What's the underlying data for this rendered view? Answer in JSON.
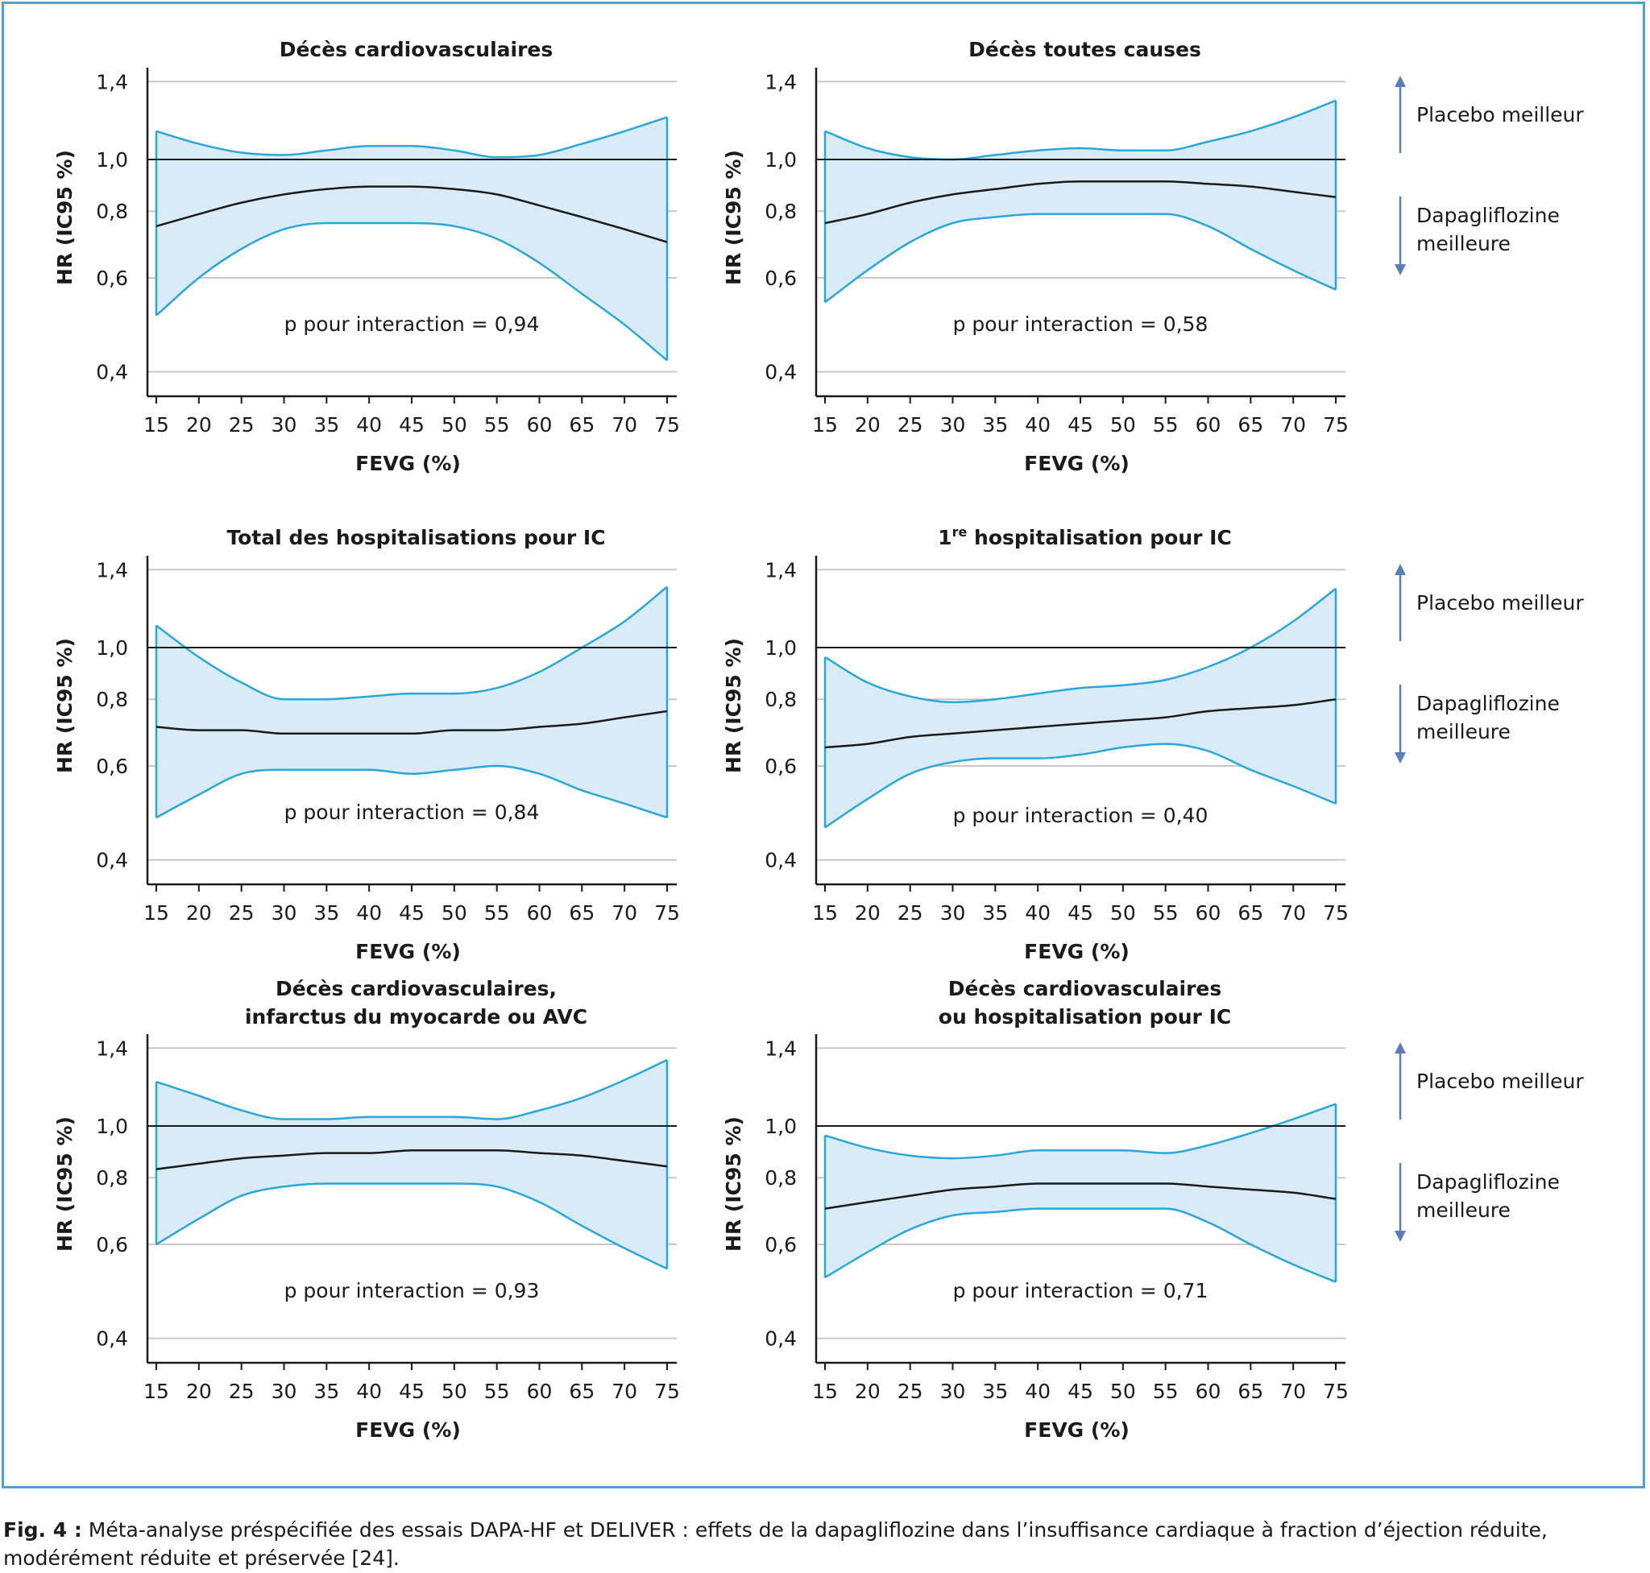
{
  "figure": {
    "caption_label": "Fig. 4 :",
    "caption_text": "Méta-analyse préspécifiée des essais DAPA-HF et DELIVER : effets de la dapagliflozine dans l’insuffisance cardiaque à fraction d’éjection réduite, modérément réduite et préservée [24].",
    "annotation_up": "Placebo meilleur",
    "annotation_down_line1": "Dapagliflozine",
    "annotation_down_line2": "meilleure"
  },
  "colors": {
    "band_fill": "#d9ebf7",
    "band_edge": "#29a7dc",
    "estimate": "#1a1a1a",
    "reference": "#1a1a1a",
    "grid": "#c8c8c8",
    "arrow": "#5b7db5",
    "frame": "#4aa3d6"
  },
  "chart_data": [
    {
      "type": "area",
      "title_lines": [
        "Décès cardiovasculaires"
      ],
      "title_sup": "",
      "xlabel": "FEVG (%)",
      "ylabel": "HR (IC95 %)",
      "xlim": [
        14,
        77
      ],
      "ylim": [
        0.37,
        1.55
      ],
      "yscale": "log",
      "xticks": [
        15,
        20,
        25,
        30,
        35,
        40,
        45,
        50,
        55,
        60,
        65,
        70,
        75
      ],
      "yticks": [
        0.4,
        0.6,
        0.8,
        1.0,
        1.4
      ],
      "ytick_labels": [
        "0,4",
        "0,6",
        "0,8",
        "1,0",
        "1,4"
      ],
      "reference_line": 1.0,
      "annotation": "p  pour interaction = 0,94",
      "x": [
        15,
        20,
        25,
        30,
        35,
        40,
        45,
        50,
        55,
        60,
        65,
        70,
        75
      ],
      "hr": [
        0.75,
        0.79,
        0.83,
        0.86,
        0.88,
        0.89,
        0.89,
        0.88,
        0.86,
        0.82,
        0.78,
        0.74,
        0.7
      ],
      "lower": [
        0.51,
        0.6,
        0.68,
        0.74,
        0.76,
        0.76,
        0.76,
        0.75,
        0.71,
        0.64,
        0.56,
        0.49,
        0.42
      ],
      "upper": [
        1.13,
        1.07,
        1.03,
        1.02,
        1.04,
        1.06,
        1.06,
        1.04,
        1.01,
        1.02,
        1.07,
        1.13,
        1.2
      ]
    },
    {
      "type": "area",
      "title_lines": [
        "Décès toutes causes"
      ],
      "title_sup": "",
      "xlabel": "FEVG (%)",
      "ylabel": "HR (IC95 %)",
      "xlim": [
        14,
        77
      ],
      "ylim": [
        0.37,
        1.55
      ],
      "yscale": "log",
      "xticks": [
        15,
        20,
        25,
        30,
        35,
        40,
        45,
        50,
        55,
        60,
        65,
        70,
        75
      ],
      "yticks": [
        0.4,
        0.6,
        0.8,
        1.0,
        1.4
      ],
      "ytick_labels": [
        "0,4",
        "0,6",
        "0,8",
        "1,0",
        "1,4"
      ],
      "reference_line": 1.0,
      "annotation": "p  pour interaction = 0,58",
      "x": [
        15,
        20,
        25,
        30,
        35,
        40,
        45,
        50,
        55,
        60,
        65,
        70,
        75
      ],
      "hr": [
        0.76,
        0.79,
        0.83,
        0.86,
        0.88,
        0.9,
        0.91,
        0.91,
        0.91,
        0.9,
        0.89,
        0.87,
        0.85
      ],
      "lower": [
        0.54,
        0.62,
        0.7,
        0.76,
        0.78,
        0.79,
        0.79,
        0.79,
        0.79,
        0.75,
        0.68,
        0.62,
        0.57
      ],
      "upper": [
        1.13,
        1.05,
        1.01,
        1.0,
        1.02,
        1.04,
        1.05,
        1.04,
        1.04,
        1.08,
        1.13,
        1.2,
        1.29
      ]
    },
    {
      "type": "area",
      "title_lines": [
        "Total des hospitalisations pour IC"
      ],
      "title_sup": "",
      "xlabel": "FEVG (%)",
      "ylabel": "HR (IC95 %)",
      "xlim": [
        14,
        77
      ],
      "ylim": [
        0.37,
        1.55
      ],
      "yscale": "log",
      "xticks": [
        15,
        20,
        25,
        30,
        35,
        40,
        45,
        50,
        55,
        60,
        65,
        70,
        75
      ],
      "yticks": [
        0.4,
        0.6,
        0.8,
        1.0,
        1.4
      ],
      "ytick_labels": [
        "0,4",
        "0,6",
        "0,8",
        "1,0",
        "1,4"
      ],
      "reference_line": 1.0,
      "annotation": "p  pour interaction = 0,84",
      "x": [
        15,
        20,
        25,
        30,
        35,
        40,
        45,
        50,
        55,
        60,
        65,
        70,
        75
      ],
      "hr": [
        0.71,
        0.7,
        0.7,
        0.69,
        0.69,
        0.69,
        0.69,
        0.7,
        0.7,
        0.71,
        0.72,
        0.74,
        0.76
      ],
      "lower": [
        0.48,
        0.53,
        0.58,
        0.59,
        0.59,
        0.59,
        0.58,
        0.59,
        0.6,
        0.58,
        0.54,
        0.51,
        0.48
      ],
      "upper": [
        1.1,
        0.96,
        0.86,
        0.8,
        0.8,
        0.81,
        0.82,
        0.82,
        0.84,
        0.9,
        1.0,
        1.12,
        1.3
      ]
    },
    {
      "type": "area",
      "title_lines": [
        "hospitalisation pour IC"
      ],
      "title_prefix": "1",
      "title_sup": "re",
      "xlabel": "FEVG (%)",
      "ylabel": "HR (IC95 %)",
      "xlim": [
        14,
        77
      ],
      "ylim": [
        0.37,
        1.55
      ],
      "yscale": "log",
      "xticks": [
        15,
        20,
        25,
        30,
        35,
        40,
        45,
        50,
        55,
        60,
        65,
        70,
        75
      ],
      "yticks": [
        0.4,
        0.6,
        0.8,
        1.0,
        1.4
      ],
      "ytick_labels": [
        "0,4",
        "0,6",
        "0,8",
        "1,0",
        "1,4"
      ],
      "reference_line": 1.0,
      "annotation": "p  pour interaction = 0,40",
      "x": [
        15,
        20,
        25,
        30,
        35,
        40,
        45,
        50,
        55,
        60,
        65,
        70,
        75
      ],
      "hr": [
        0.65,
        0.66,
        0.68,
        0.69,
        0.7,
        0.71,
        0.72,
        0.73,
        0.74,
        0.76,
        0.77,
        0.78,
        0.8
      ],
      "lower": [
        0.46,
        0.52,
        0.58,
        0.61,
        0.62,
        0.62,
        0.63,
        0.65,
        0.66,
        0.64,
        0.59,
        0.55,
        0.51
      ],
      "upper": [
        0.96,
        0.86,
        0.81,
        0.79,
        0.8,
        0.82,
        0.84,
        0.85,
        0.87,
        0.92,
        1.0,
        1.12,
        1.29
      ]
    },
    {
      "type": "area",
      "title_lines": [
        "Décès cardiovasculaires,",
        "infarctus du myocarde ou AVC"
      ],
      "title_sup": "",
      "xlabel": "FEVG (%)",
      "ylabel": "HR (IC95 %)",
      "xlim": [
        14,
        77
      ],
      "ylim": [
        0.37,
        1.55
      ],
      "yscale": "log",
      "xticks": [
        15,
        20,
        25,
        30,
        35,
        40,
        45,
        50,
        55,
        60,
        65,
        70,
        75
      ],
      "yticks": [
        0.4,
        0.6,
        0.8,
        1.0,
        1.4
      ],
      "ytick_labels": [
        "0,4",
        "0,6",
        "0,8",
        "1,0",
        "1,4"
      ],
      "reference_line": 1.0,
      "annotation": "p  pour interaction = 0,93",
      "x": [
        15,
        20,
        25,
        30,
        35,
        40,
        45,
        50,
        55,
        60,
        65,
        70,
        75
      ],
      "hr": [
        0.83,
        0.85,
        0.87,
        0.88,
        0.89,
        0.89,
        0.9,
        0.9,
        0.9,
        0.89,
        0.88,
        0.86,
        0.84
      ],
      "lower": [
        0.6,
        0.67,
        0.74,
        0.77,
        0.78,
        0.78,
        0.78,
        0.78,
        0.77,
        0.72,
        0.65,
        0.59,
        0.54
      ],
      "upper": [
        1.21,
        1.14,
        1.07,
        1.03,
        1.03,
        1.04,
        1.04,
        1.04,
        1.03,
        1.07,
        1.13,
        1.22,
        1.33
      ]
    },
    {
      "type": "area",
      "title_lines": [
        "Décès cardiovasculaires",
        "ou hospitalisation pour IC"
      ],
      "title_sup": "",
      "xlabel": "FEVG (%)",
      "ylabel": "HR (IC95 %)",
      "xlim": [
        14,
        77
      ],
      "ylim": [
        0.37,
        1.55
      ],
      "yscale": "log",
      "xticks": [
        15,
        20,
        25,
        30,
        35,
        40,
        45,
        50,
        55,
        60,
        65,
        70,
        75
      ],
      "yticks": [
        0.4,
        0.6,
        0.8,
        1.0,
        1.4
      ],
      "ytick_labels": [
        "0,4",
        "0,6",
        "0,8",
        "1,0",
        "1,4"
      ],
      "reference_line": 1.0,
      "annotation": "p  pour interaction = 0,71",
      "x": [
        15,
        20,
        25,
        30,
        35,
        40,
        45,
        50,
        55,
        60,
        65,
        70,
        75
      ],
      "hr": [
        0.7,
        0.72,
        0.74,
        0.76,
        0.77,
        0.78,
        0.78,
        0.78,
        0.78,
        0.77,
        0.76,
        0.75,
        0.73
      ],
      "lower": [
        0.52,
        0.58,
        0.64,
        0.68,
        0.69,
        0.7,
        0.7,
        0.7,
        0.7,
        0.66,
        0.6,
        0.55,
        0.51
      ],
      "upper": [
        0.96,
        0.91,
        0.88,
        0.87,
        0.88,
        0.9,
        0.9,
        0.9,
        0.89,
        0.92,
        0.97,
        1.03,
        1.1
      ]
    }
  ]
}
